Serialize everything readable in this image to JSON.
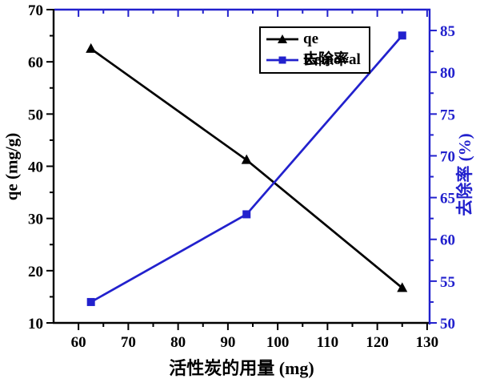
{
  "chart_data": {
    "type": "line",
    "title": "",
    "xlabel": "活性炭的用量 (mg)",
    "ylabel_left": "qe (mg/g)",
    "ylabel_right": "去除率 (%)",
    "xlim": [
      55,
      130.5
    ],
    "ylim_left": [
      10,
      70
    ],
    "ylim_right": [
      50,
      87.5
    ],
    "x_major_ticks": [
      60,
      70,
      80,
      90,
      100,
      110,
      120,
      130
    ],
    "x_minor_step": 5,
    "y_left_major_ticks": [
      10,
      20,
      30,
      40,
      50,
      60,
      70
    ],
    "y_left_minor_step": 5,
    "y_right_major_ticks": [
      50,
      55,
      60,
      65,
      70,
      75,
      80,
      85
    ],
    "y_right_minor_step": 2.5,
    "x": [
      62.5,
      93.75,
      125
    ],
    "series": [
      {
        "name": "qe",
        "axis": "left",
        "marker": "triangle",
        "color": "#000000",
        "values": [
          62.5,
          41.2,
          16.7
        ]
      },
      {
        "name": "去除率",
        "axis": "right",
        "marker": "square",
        "color": "#2221cd",
        "values": [
          52.5,
          63,
          84.4
        ]
      }
    ],
    "legend": {
      "position": "top-center",
      "entries": [
        {
          "label": "qe"
        },
        {
          "label": "去除率",
          "overlap_label": "Removal"
        }
      ]
    },
    "colors": {
      "left_axis": "#000000",
      "bottom_axis": "#000000",
      "right_axis": "#2221cd",
      "top_axis": "#2221cd",
      "background": "#ffffff"
    },
    "grid": false
  }
}
